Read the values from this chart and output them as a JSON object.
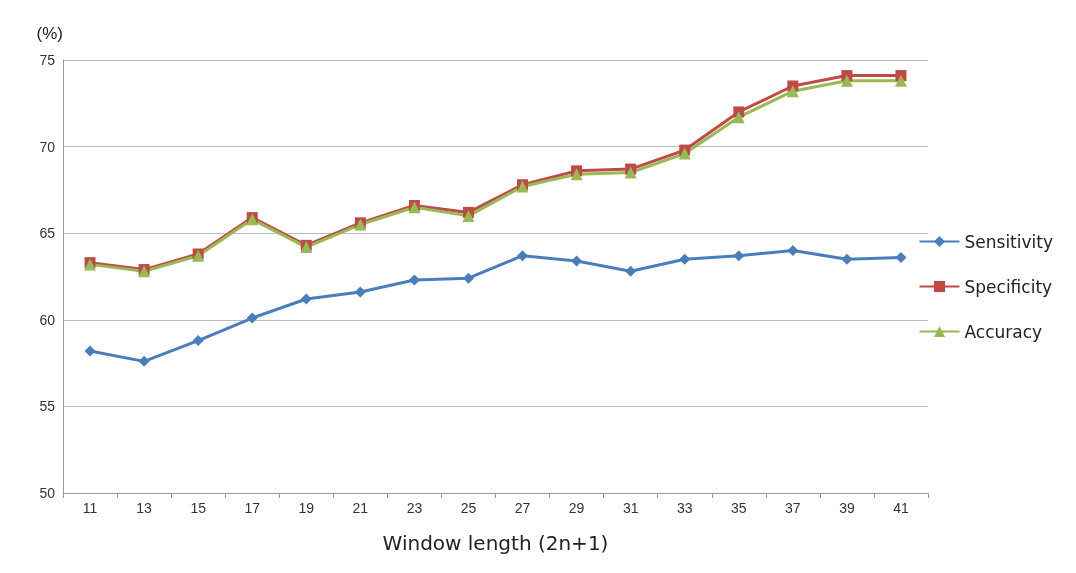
{
  "chart_data": {
    "type": "line",
    "ylabel": "(%)",
    "xlabel": "Window length (2n+1)",
    "categories": [
      "11",
      "13",
      "15",
      "17",
      "19",
      "21",
      "23",
      "25",
      "27",
      "29",
      "31",
      "33",
      "35",
      "37",
      "39",
      "41"
    ],
    "series": [
      {
        "name": "Sensitivity",
        "color": "#4a7ebb",
        "marker": "diamond",
        "values": [
          58.2,
          57.6,
          58.8,
          60.1,
          61.2,
          61.6,
          62.3,
          62.4,
          63.7,
          63.4,
          62.8,
          63.5,
          63.7,
          64.0,
          63.5,
          63.6
        ]
      },
      {
        "name": "Specificity",
        "color": "#be4b48",
        "marker": "square",
        "values": [
          63.3,
          62.9,
          63.8,
          65.9,
          64.3,
          65.6,
          66.6,
          66.2,
          67.8,
          68.6,
          68.7,
          69.8,
          72.0,
          73.5,
          74.1,
          74.1
        ]
      },
      {
        "name": "Accuracy",
        "color": "#98b954",
        "marker": "triangle",
        "values": [
          63.2,
          62.8,
          63.7,
          65.8,
          64.2,
          65.5,
          66.5,
          66.0,
          67.7,
          68.4,
          68.5,
          69.6,
          71.7,
          73.2,
          73.8,
          73.8
        ]
      }
    ],
    "ylim": [
      50,
      75
    ],
    "yticks": [
      50,
      55,
      60,
      65,
      70,
      75
    ],
    "grid": "y",
    "legend": "right"
  }
}
